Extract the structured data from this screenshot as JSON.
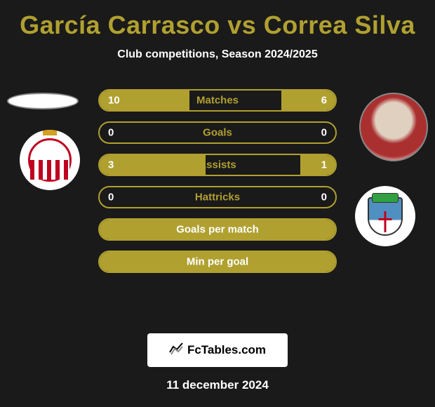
{
  "title": "García Carrasco vs Correa Silva",
  "subtitle": "Club competitions, Season 2024/2025",
  "stats": [
    {
      "label": "Matches",
      "left_value": "10",
      "right_value": "6",
      "left_fill_pct": 38,
      "right_fill_pct": 23,
      "full": false
    },
    {
      "label": "Goals",
      "left_value": "0",
      "right_value": "0",
      "left_fill_pct": 0,
      "right_fill_pct": 0,
      "full": false
    },
    {
      "label": "Assists",
      "left_value": "3",
      "right_value": "1",
      "left_fill_pct": 45,
      "right_fill_pct": 15,
      "full": false
    },
    {
      "label": "Hattricks",
      "left_value": "0",
      "right_value": "0",
      "left_fill_pct": 0,
      "right_fill_pct": 0,
      "full": false
    },
    {
      "label": "Goals per match",
      "left_value": "",
      "right_value": "",
      "left_fill_pct": 100,
      "right_fill_pct": 0,
      "full": true
    },
    {
      "label": "Min per goal",
      "left_value": "",
      "right_value": "",
      "left_fill_pct": 100,
      "right_fill_pct": 0,
      "full": true
    }
  ],
  "watermark": "FcTables.com",
  "date": "11 december 2024",
  "colors": {
    "accent": "#b0a030",
    "background": "#1a1a1a"
  }
}
